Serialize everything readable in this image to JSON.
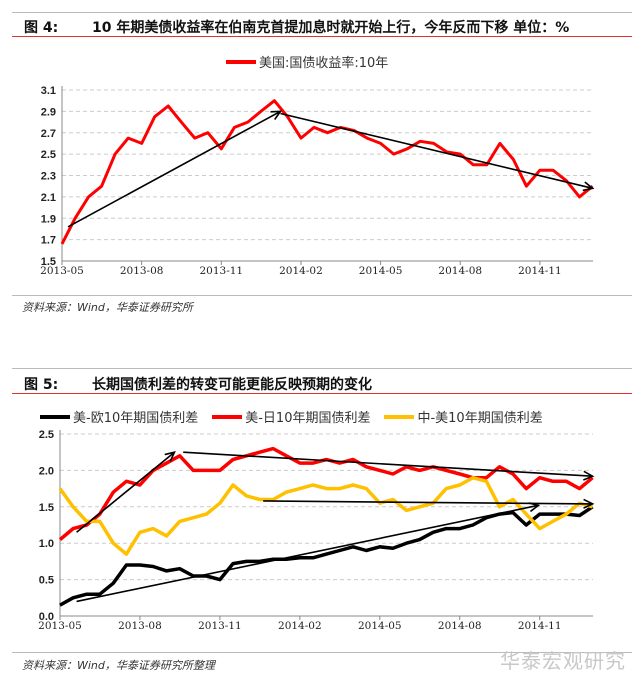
{
  "figures": [
    {
      "number": "图 4:",
      "title": "10 年期美债收益率在伯南克首提加息时就开始上行，今年反而下移  单位：%",
      "source": "资料来源：Wind，华泰证券研究所"
    },
    {
      "number": "图 5:",
      "title": "长期国债利差的转变可能更能反映预期的变化",
      "source": "资料来源：Wind，华泰证券研究所整理"
    }
  ],
  "watermark": "华泰宏观研究",
  "chart_data": [
    {
      "type": "line",
      "title": "",
      "xlabel": "",
      "ylabel": "",
      "ylim": [
        1.5,
        3.1
      ],
      "yticks": [
        "1.5",
        "1.7",
        "1.9",
        "2.1",
        "2.3",
        "2.5",
        "2.7",
        "2.9",
        "3.1"
      ],
      "xticks": [
        "2013-05",
        "2013-08",
        "2013-11",
        "2014-02",
        "2014-05",
        "2014-08",
        "2014-11"
      ],
      "grid": "horizontal dashed",
      "legend": "top",
      "x": [
        "2013-05-01",
        "2013-05-16",
        "2013-06-01",
        "2013-06-16",
        "2013-07-01",
        "2013-07-16",
        "2013-08-01",
        "2013-08-16",
        "2013-09-01",
        "2013-09-16",
        "2013-10-01",
        "2013-10-16",
        "2013-11-01",
        "2013-11-16",
        "2013-12-01",
        "2013-12-16",
        "2014-01-01",
        "2014-01-16",
        "2014-02-01",
        "2014-02-16",
        "2014-03-01",
        "2014-03-16",
        "2014-04-01",
        "2014-04-16",
        "2014-05-01",
        "2014-05-16",
        "2014-06-01",
        "2014-06-16",
        "2014-07-01",
        "2014-07-16",
        "2014-08-01",
        "2014-08-16",
        "2014-09-01",
        "2014-09-16",
        "2014-10-01",
        "2014-10-16",
        "2014-11-01",
        "2014-11-16",
        "2014-12-01",
        "2014-12-16",
        "2014-12-31"
      ],
      "series": [
        {
          "name": "美国:国债收益率:10年",
          "color": "#ff0000",
          "values": [
            1.66,
            1.9,
            2.1,
            2.2,
            2.5,
            2.65,
            2.6,
            2.85,
            2.95,
            2.8,
            2.65,
            2.7,
            2.55,
            2.75,
            2.8,
            2.9,
            3.0,
            2.85,
            2.65,
            2.75,
            2.7,
            2.75,
            2.72,
            2.65,
            2.6,
            2.5,
            2.55,
            2.62,
            2.6,
            2.52,
            2.5,
            2.4,
            2.4,
            2.6,
            2.45,
            2.2,
            2.35,
            2.35,
            2.25,
            2.1,
            2.2
          ]
        }
      ],
      "annotations": [
        {
          "type": "arrow",
          "from": [
            "2013-05-08",
            1.82
          ],
          "to": [
            "2014-01-08",
            2.9
          ]
        },
        {
          "type": "arrow",
          "from": [
            "2014-01-08",
            2.88
          ],
          "to": [
            "2014-12-31",
            2.18
          ]
        }
      ]
    },
    {
      "type": "line",
      "title": "",
      "xlabel": "",
      "ylabel": "",
      "ylim": [
        0.0,
        2.5
      ],
      "yticks": [
        "0.0",
        "0.5",
        "1.0",
        "1.5",
        "2.0",
        "2.5"
      ],
      "xticks": [
        "2013-05",
        "2013-08",
        "2013-11",
        "2014-02",
        "2014-05",
        "2014-08",
        "2014-11"
      ],
      "grid": "horizontal dashed",
      "legend": "top",
      "x": [
        "2013-05-01",
        "2013-05-16",
        "2013-06-01",
        "2013-06-16",
        "2013-07-01",
        "2013-07-16",
        "2013-08-01",
        "2013-08-16",
        "2013-09-01",
        "2013-09-16",
        "2013-10-01",
        "2013-10-16",
        "2013-11-01",
        "2013-11-16",
        "2013-12-01",
        "2013-12-16",
        "2014-01-01",
        "2014-01-16",
        "2014-02-01",
        "2014-02-16",
        "2014-03-01",
        "2014-03-16",
        "2014-04-01",
        "2014-04-16",
        "2014-05-01",
        "2014-05-16",
        "2014-06-01",
        "2014-06-16",
        "2014-07-01",
        "2014-07-16",
        "2014-08-01",
        "2014-08-16",
        "2014-09-01",
        "2014-09-16",
        "2014-10-01",
        "2014-10-16",
        "2014-11-01",
        "2014-11-16",
        "2014-12-01",
        "2014-12-16",
        "2014-12-31"
      ],
      "series": [
        {
          "name": "美-欧10年期国债利差",
          "color": "#000000",
          "values": [
            0.15,
            0.25,
            0.3,
            0.3,
            0.45,
            0.7,
            0.7,
            0.68,
            0.62,
            0.65,
            0.55,
            0.55,
            0.5,
            0.72,
            0.75,
            0.75,
            0.78,
            0.78,
            0.8,
            0.8,
            0.85,
            0.9,
            0.95,
            0.9,
            0.95,
            0.93,
            1.0,
            1.05,
            1.15,
            1.2,
            1.2,
            1.25,
            1.35,
            1.4,
            1.42,
            1.25,
            1.4,
            1.4,
            1.4,
            1.38,
            1.5
          ]
        },
        {
          "name": "美-日10年期国债利差",
          "color": "#ff0000",
          "values": [
            1.05,
            1.2,
            1.25,
            1.4,
            1.7,
            1.85,
            1.8,
            2.0,
            2.1,
            2.2,
            2.0,
            2.0,
            2.0,
            2.15,
            2.2,
            2.25,
            2.3,
            2.2,
            2.1,
            2.1,
            2.15,
            2.1,
            2.15,
            2.05,
            2.0,
            1.95,
            2.05,
            2.0,
            2.05,
            2.0,
            1.95,
            1.9,
            1.9,
            2.05,
            1.95,
            1.75,
            1.9,
            1.85,
            1.85,
            1.75,
            1.9
          ]
        },
        {
          "name": "中-美10年期国债利差",
          "color": "#ffc000",
          "values": [
            1.75,
            1.5,
            1.3,
            1.3,
            1.0,
            0.85,
            1.15,
            1.2,
            1.1,
            1.3,
            1.35,
            1.4,
            1.55,
            1.8,
            1.65,
            1.6,
            1.6,
            1.7,
            1.75,
            1.8,
            1.75,
            1.75,
            1.8,
            1.75,
            1.55,
            1.6,
            1.45,
            1.5,
            1.55,
            1.75,
            1.8,
            1.9,
            1.85,
            1.5,
            1.6,
            1.4,
            1.2,
            1.3,
            1.4,
            1.55,
            1.5
          ]
        }
      ],
      "annotations": [
        {
          "type": "arrow",
          "from": [
            "2013-05-20",
            1.15
          ],
          "to": [
            "2013-09-10",
            2.25
          ]
        },
        {
          "type": "arrow",
          "from": [
            "2013-09-20",
            2.25
          ],
          "to": [
            "2014-12-31",
            1.92
          ]
        },
        {
          "type": "arrow",
          "from": [
            "2013-12-20",
            1.58
          ],
          "to": [
            "2014-12-31",
            1.54
          ]
        },
        {
          "type": "arrow",
          "from": [
            "2013-05-20",
            0.2
          ],
          "to": [
            "2014-10-30",
            1.52
          ]
        }
      ]
    }
  ]
}
